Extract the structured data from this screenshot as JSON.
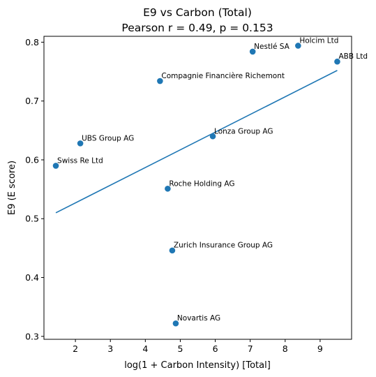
{
  "chart_data": {
    "type": "scatter",
    "title": "E9 vs Carbon (Total)",
    "subtitle": "Pearson r = 0.49, p = 0.153",
    "xlabel": "log(1 + Carbon Intensity) [Total]",
    "ylabel": "E9 (E score)",
    "xlim": [
      1.1,
      9.9
    ],
    "ylim": [
      0.295,
      0.81
    ],
    "xticks": [
      2,
      3,
      4,
      5,
      6,
      7,
      8,
      9
    ],
    "yticks": [
      0.3,
      0.4,
      0.5,
      0.6,
      0.7,
      0.8
    ],
    "ytick_labels": [
      "0.3",
      "0.4",
      "0.5",
      "0.6",
      "0.7",
      "0.8"
    ],
    "grid": false,
    "point_color": "#1f77b4",
    "line_color": "#1f77b4",
    "points": [
      {
        "label": "Swiss Re Ltd",
        "x": 1.44,
        "y": 0.59
      },
      {
        "label": "UBS Group AG",
        "x": 2.14,
        "y": 0.628
      },
      {
        "label": "Compagnie Financière Richemont",
        "x": 4.42,
        "y": 0.734
      },
      {
        "label": "Roche Holding AG",
        "x": 4.64,
        "y": 0.551
      },
      {
        "label": "Zurich Insurance Group AG",
        "x": 4.77,
        "y": 0.446
      },
      {
        "label": "Novartis AG",
        "x": 4.87,
        "y": 0.322
      },
      {
        "label": "Lonza Group AG",
        "x": 5.93,
        "y": 0.64
      },
      {
        "label": "Nestlé SA",
        "x": 7.07,
        "y": 0.784
      },
      {
        "label": "Holcim Ltd",
        "x": 8.37,
        "y": 0.794
      },
      {
        "label": "ABB Ltd",
        "x": 9.49,
        "y": 0.767
      }
    ],
    "fit_line": {
      "x": [
        1.44,
        9.49
      ],
      "y": [
        0.51,
        0.752
      ]
    }
  }
}
